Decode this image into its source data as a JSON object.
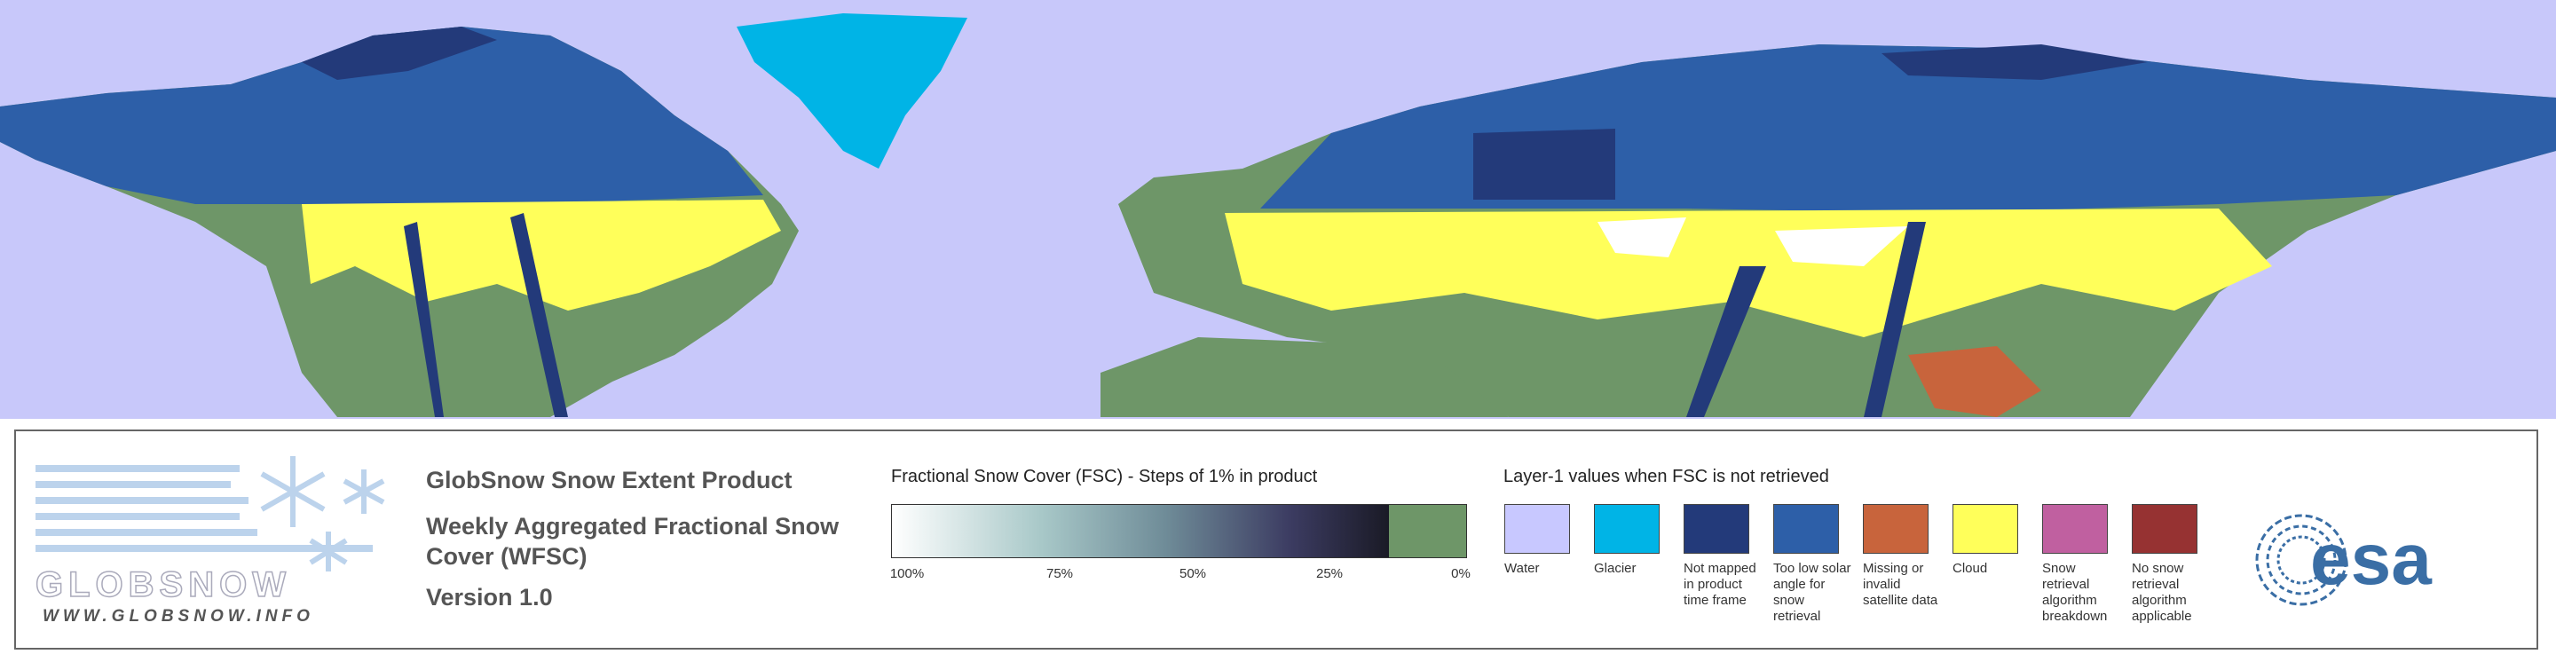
{
  "logo": {
    "name": "GLOBSNOW",
    "url": "WWW.GLOBSNOW.INFO"
  },
  "header": {
    "title": "GlobSnow Snow Extent Product",
    "subtitle": "Weekly Aggregated Fractional Snow Cover (WFSC)",
    "version": "Version 1.0"
  },
  "colorbar": {
    "title": "Fractional Snow Cover (FSC) - Steps of 1% in product",
    "labels": [
      "100%",
      "75%",
      "50%",
      "25%",
      "0%"
    ]
  },
  "legend": {
    "title": "Layer-1 values when FSC is not retrieved",
    "items": [
      {
        "label": "Water",
        "color": "#c8c8ff"
      },
      {
        "label": "Glacier",
        "color": "#00b4e6"
      },
      {
        "label": "Not mapped in product time frame",
        "color": "#233a7a"
      },
      {
        "label": "Too low solar angle for snow retrieval",
        "color": "#2d5fa8"
      },
      {
        "label": "Missing or invalid satellite data",
        "color": "#c8643c"
      },
      {
        "label": "Cloud",
        "color": "#ffff5a"
      },
      {
        "label": "Snow retrieval algorithm breakdown",
        "color": "#c060a0"
      },
      {
        "label": "No snow retrieval algorithm applicable",
        "color": "#963232"
      }
    ]
  },
  "agency": {
    "name": "esa"
  }
}
